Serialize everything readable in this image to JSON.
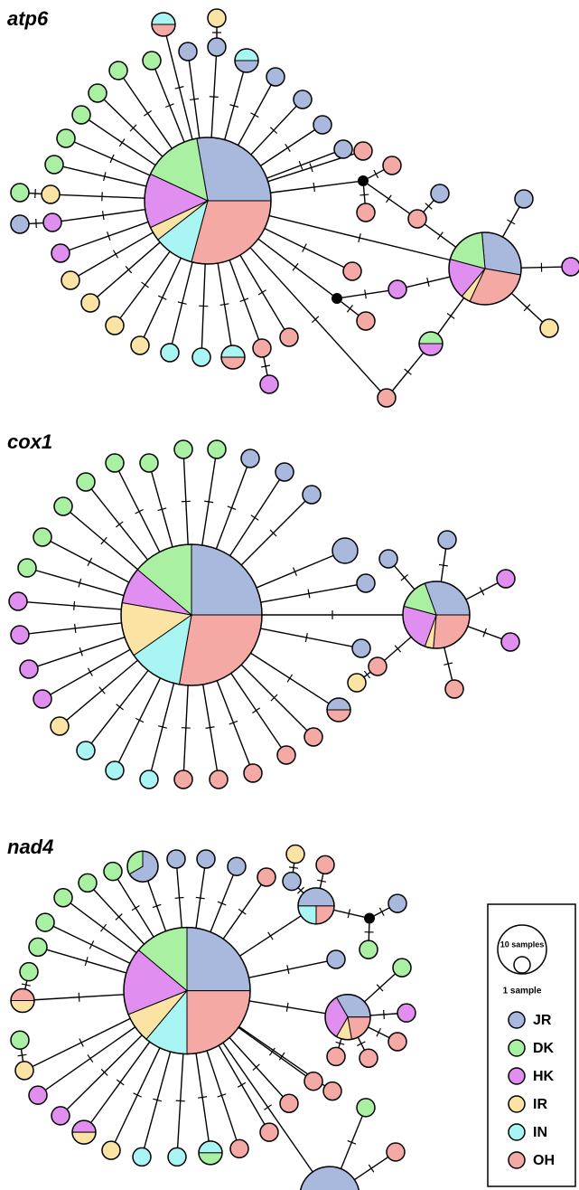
{
  "panels": [
    {
      "title": "atp6"
    },
    {
      "title": "cox1"
    },
    {
      "title": "nad4"
    }
  ],
  "legend": {
    "size_large": "10 samples",
    "size_small": "1 sample",
    "items": [
      {
        "label": "JR",
        "color": "#a9b9dd"
      },
      {
        "label": "DK",
        "color": "#a9f0a3"
      },
      {
        "label": "HK",
        "color": "#e08ef0"
      },
      {
        "label": "IR",
        "color": "#fbe3a3"
      },
      {
        "label": "IN",
        "color": "#a9f5f3"
      },
      {
        "label": "OH",
        "color": "#f5a9a4"
      }
    ]
  }
}
